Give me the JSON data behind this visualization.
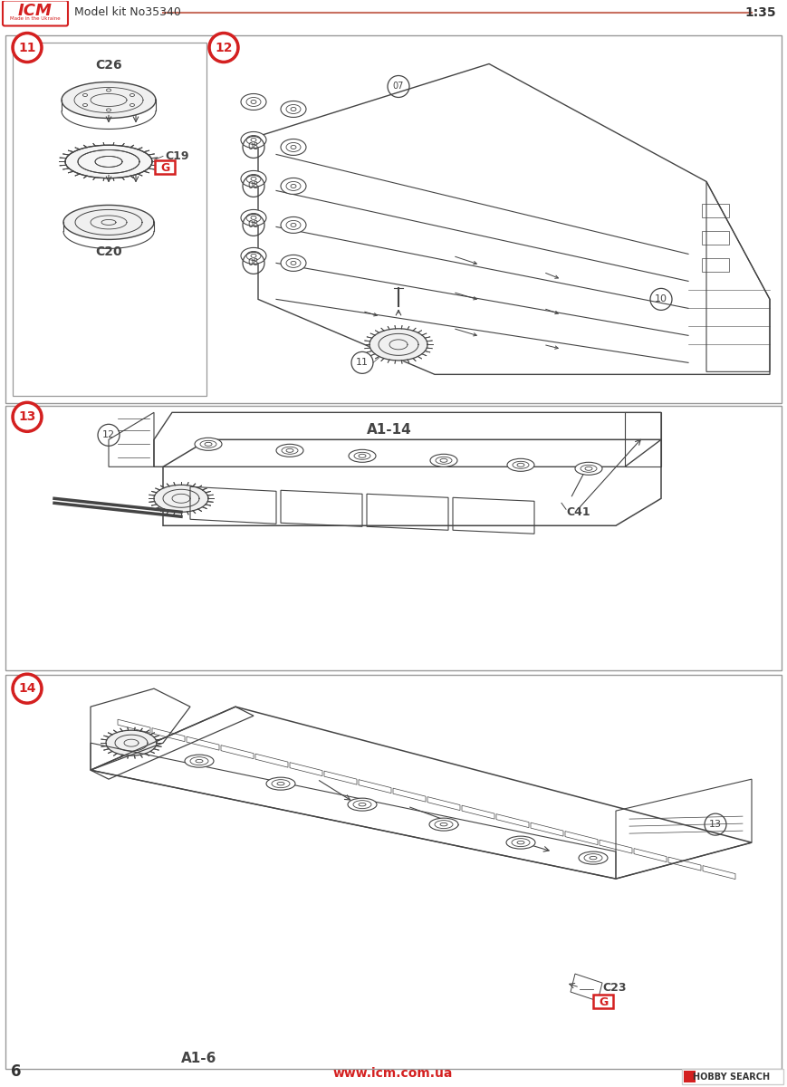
{
  "bg_color": "#ffffff",
  "page_number": "6",
  "website": "www.icm.com.ua",
  "hobby_search": "HOBBY SEARCH",
  "model_kit": "Model kit No35340",
  "scale": "1:35",
  "header_line_color": "#c87060",
  "step_circle_color": "#d42020",
  "step_text_color": "#ffffff",
  "label_color": "#222222",
  "red_box_color": "#d42020",
  "line_color": "#444444",
  "border_color": "#999999",
  "sub_border_color": "#777777"
}
